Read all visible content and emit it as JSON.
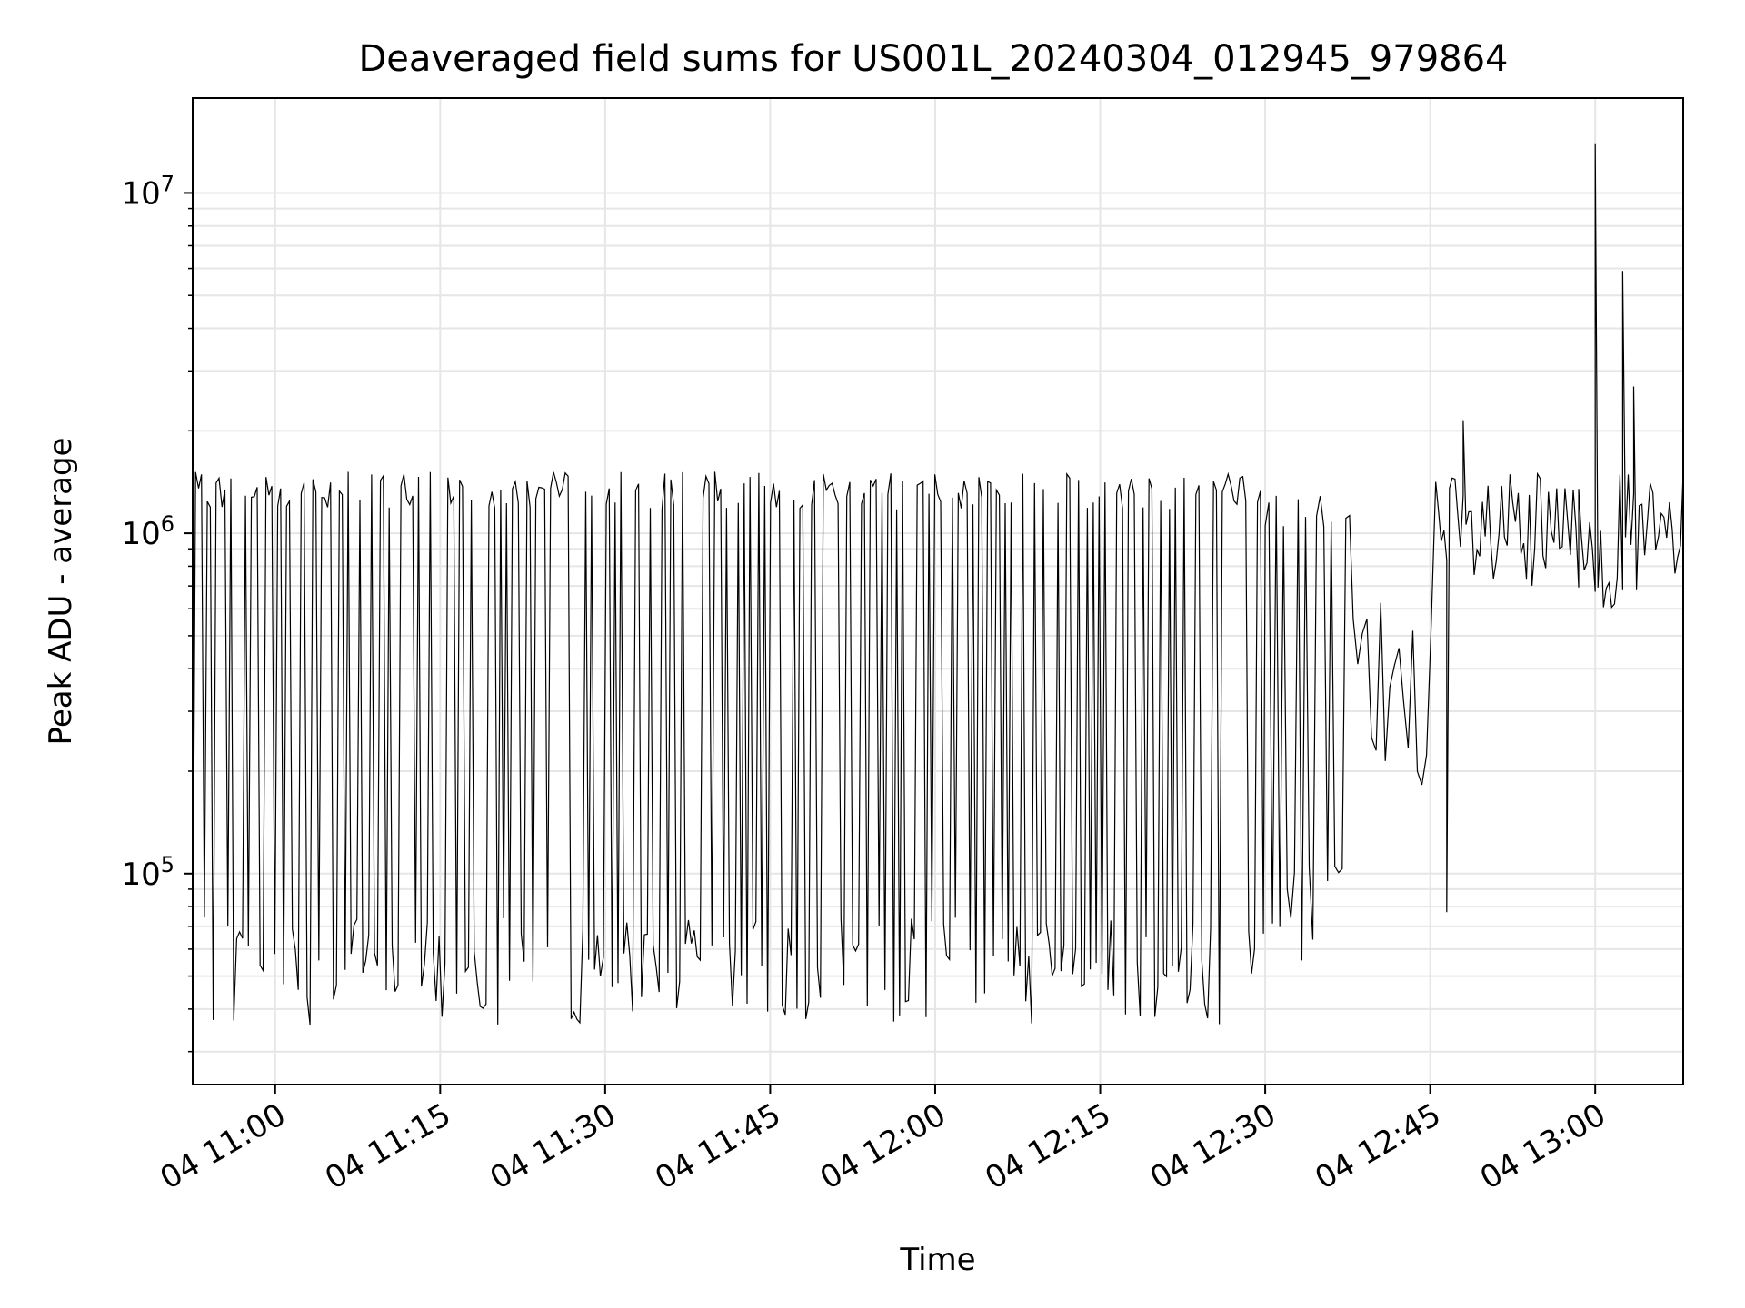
{
  "chart_data": {
    "type": "line",
    "title": "Deaveraged field sums for US001L_20240304_012945_979864",
    "xlabel": "Time",
    "ylabel": "Peak ADU - average",
    "yscale": "log",
    "xlim": [
      "2024-03-04T10:52:30",
      "2024-03-04T13:08:00"
    ],
    "ylim": [
      24000,
      19000000
    ],
    "grid": true,
    "line_color": "#000000",
    "grid_color": "#e6e6e6",
    "xticks": [
      "04 11:00",
      "04 11:15",
      "04 11:30",
      "04 11:45",
      "04 12:00",
      "04 12:15",
      "04 12:30",
      "04 12:45",
      "04 13:00"
    ],
    "ytick_labels": [
      {
        "base": "10",
        "exp": "5",
        "value": 100000
      },
      {
        "base": "10",
        "exp": "6",
        "value": 1000000
      },
      {
        "base": "10",
        "exp": "7",
        "value": 10000000
      }
    ],
    "segments": [
      {
        "start": "2024-03-04T10:52:30",
        "end": "2024-03-04T12:30:00",
        "low": 48000,
        "high": 1380000,
        "period_s": 16
      },
      {
        "start": "2024-03-04T12:30:00",
        "end": "2024-03-04T12:38:00",
        "low": 70000,
        "high": 1200000,
        "period_s": 20
      },
      {
        "start": "2024-03-04T12:38:00",
        "end": "2024-03-04T12:45:30",
        "low": 180000,
        "high": 700000,
        "period_s": 25
      },
      {
        "start": "2024-03-04T12:45:30",
        "end": "2024-03-04T13:08:00",
        "low": 600000,
        "high": 1500000,
        "period_s": 15
      }
    ],
    "notable_points": [
      {
        "t": "2024-03-04T12:46:30",
        "v": 77000
      },
      {
        "t": "2024-03-04T12:48:00",
        "v": 2150000
      },
      {
        "t": "2024-03-04T12:58:30",
        "v": 1350000
      },
      {
        "t": "2024-03-04T13:00:00",
        "v": 14000000
      },
      {
        "t": "2024-03-04T13:02:30",
        "v": 5900000
      },
      {
        "t": "2024-03-04T13:03:30",
        "v": 2700000
      },
      {
        "t": "2024-03-04T13:08:00",
        "v": 1500000
      }
    ]
  }
}
